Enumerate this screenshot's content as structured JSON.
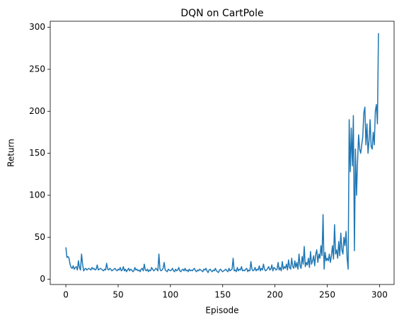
{
  "chart_data": {
    "type": "line",
    "title": "DQN on CartPole",
    "x_label": "Episode",
    "y_label": "Return",
    "xlim": [
      -14.95,
      313.95
    ],
    "xticks": [
      0,
      50,
      100,
      150,
      200,
      250,
      300
    ],
    "ylim": [
      -6.25,
      307.25
    ],
    "yticks": [
      0,
      50,
      100,
      150,
      200,
      250,
      300
    ],
    "grid": false,
    "series": [
      {
        "name": "Return",
        "color": "#1f77b4",
        "values": [
          38,
          26,
          27,
          25,
          18,
          14,
          13,
          16,
          12,
          14,
          15,
          11,
          22,
          14,
          11,
          30,
          18,
          10,
          12,
          13,
          11,
          12,
          13,
          12,
          11,
          14,
          12,
          13,
          11,
          12,
          17,
          11,
          12,
          13,
          12,
          11,
          10,
          12,
          11,
          19,
          12,
          11,
          13,
          12,
          10,
          11,
          12,
          13,
          11,
          10,
          12,
          11,
          14,
          10,
          11,
          15,
          10,
          12,
          9,
          11,
          13,
          10,
          12,
          11,
          9,
          10,
          14,
          11,
          12,
          10,
          11,
          9,
          12,
          13,
          10,
          18,
          11,
          10,
          12,
          9,
          11,
          10,
          14,
          12,
          10,
          11,
          13,
          12,
          10,
          30,
          12,
          10,
          11,
          13,
          20,
          11,
          10,
          9,
          12,
          11,
          10,
          11,
          13,
          10,
          9,
          12,
          10,
          11,
          14,
          10,
          9,
          11,
          12,
          10,
          13,
          10,
          11,
          9,
          12,
          10,
          11,
          10,
          12,
          13,
          10,
          9,
          11,
          10,
          12,
          11,
          10,
          9,
          12,
          11,
          13,
          10,
          8,
          11,
          12,
          10,
          9,
          11,
          10,
          13,
          10,
          9,
          8,
          11,
          12,
          10,
          9,
          10,
          11,
          12,
          10,
          9,
          13,
          10,
          11,
          12,
          25,
          10,
          11,
          9,
          14,
          10,
          12,
          11,
          15,
          10,
          11,
          10,
          12,
          13,
          9,
          11,
          10,
          21,
          12,
          10,
          11,
          14,
          10,
          12,
          11,
          16,
          10,
          13,
          11,
          18,
          12,
          10,
          11,
          13,
          15,
          11,
          12,
          17,
          10,
          14,
          13,
          11,
          12,
          20,
          11,
          14,
          10,
          21,
          12,
          15,
          13,
          18,
          11,
          23,
          14,
          12,
          25,
          15,
          13,
          22,
          14,
          20,
          12,
          30,
          16,
          13,
          27,
          18,
          39,
          15,
          20,
          17,
          25,
          14,
          33,
          18,
          22,
          28,
          16,
          30,
          35,
          20,
          30,
          25,
          40,
          28,
          77,
          12,
          32,
          22,
          25,
          22,
          30,
          20,
          28,
          40,
          24,
          65,
          30,
          35,
          25,
          45,
          28,
          55,
          35,
          30,
          50,
          40,
          57,
          25,
          12,
          190,
          128,
          180,
          135,
          195,
          34,
          155,
          100,
          140,
          172,
          155,
          150,
          160,
          170,
          198,
          205,
          160,
          185,
          150,
          165,
          190,
          158,
          155,
          175,
          160,
          200,
          208,
          185,
          293
        ]
      }
    ]
  }
}
